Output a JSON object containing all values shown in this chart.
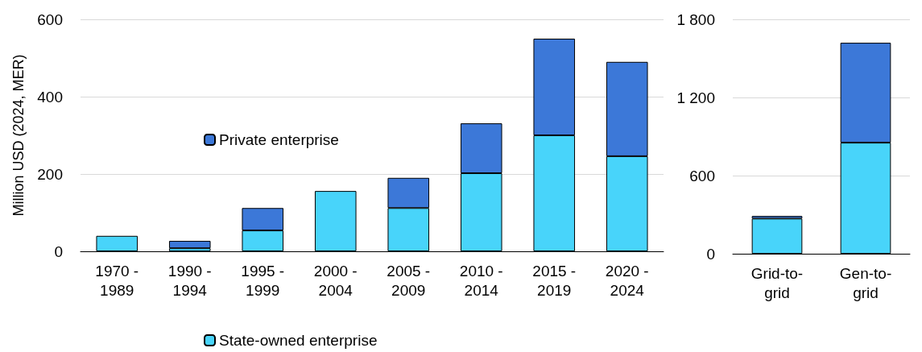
{
  "chart_data": [
    {
      "type": "bar",
      "ylabel": "Million USD (2024, MER)",
      "categories": [
        "1970 - 1989",
        "1990 - 1994",
        "1995 - 1999",
        "2000 - 2004",
        "2005 - 2009",
        "2010 - 2014",
        "2015 - 2019",
        "2020 - 2024"
      ],
      "series": [
        {
          "name": "State-owned enterprise",
          "color": "#48d4fa",
          "values": [
            40,
            8,
            54,
            156,
            112,
            202,
            300,
            246
          ]
        },
        {
          "name": "Private enterprise",
          "color": "#3c78d8",
          "values": [
            null,
            19,
            58,
            null,
            78,
            129,
            250,
            244
          ]
        }
      ],
      "stacked": true,
      "ylim": [
        0,
        600
      ],
      "yticks": [
        0,
        200,
        400,
        600
      ],
      "grid": "y",
      "legend": "bottom"
    },
    {
      "type": "bar",
      "categories": [
        "Grid-to-grid",
        "Gen-to-grid"
      ],
      "series": [
        {
          "color": "#48d4fa",
          "values": [
            270,
            853
          ]
        },
        {
          "color": "#3c78d8",
          "values": [
            20,
            767
          ]
        }
      ],
      "stacked": true,
      "ylim": [
        0,
        1800
      ],
      "yticks": [
        0,
        {
          "value": 600,
          "label": "600"
        },
        {
          "value": 1200,
          "label": "1 200"
        },
        {
          "value": 1800,
          "label": "1 800"
        }
      ],
      "grid": "y"
    }
  ]
}
